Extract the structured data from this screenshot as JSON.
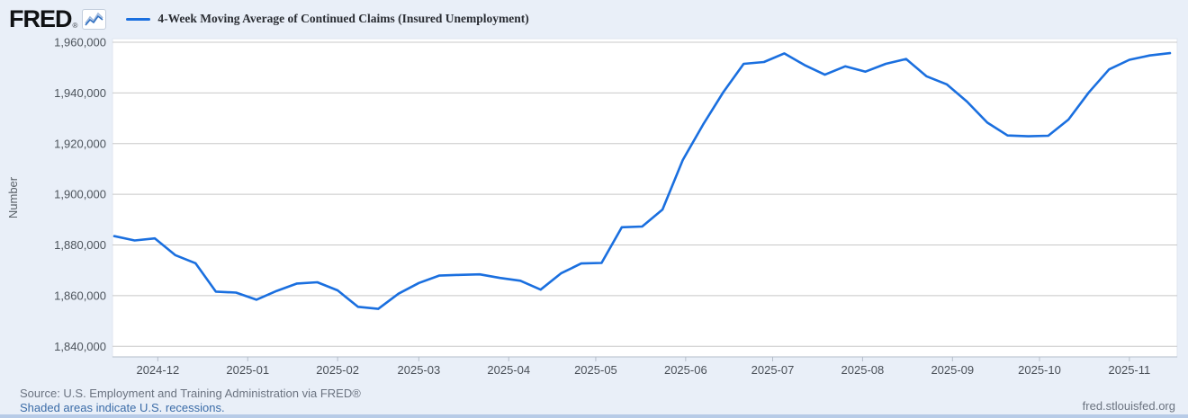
{
  "header": {
    "logo_text": "FRED",
    "logo_registered": "®",
    "legend_swatch_color": "#1a6fdf"
  },
  "chart_data": {
    "type": "line",
    "title": "4-Week Moving Average of Continued Claims (Insured Unemployment)",
    "xlabel": "",
    "ylabel": "Number",
    "ylim": [
      1840000,
      1960000
    ],
    "y_tick_step": 20000,
    "y_ticks": [
      1960000,
      1940000,
      1920000,
      1900000,
      1880000,
      1860000,
      1840000
    ],
    "x_ticks": [
      {
        "label": "2024-12",
        "date": "2024-12-01"
      },
      {
        "label": "2025-01",
        "date": "2025-01-01"
      },
      {
        "label": "2025-02",
        "date": "2025-02-01"
      },
      {
        "label": "2025-03",
        "date": "2025-03-01"
      },
      {
        "label": "2025-04",
        "date": "2025-04-01"
      },
      {
        "label": "2025-05",
        "date": "2025-05-01"
      },
      {
        "label": "2025-06",
        "date": "2025-06-01"
      },
      {
        "label": "2025-07",
        "date": "2025-07-01"
      },
      {
        "label": "2025-08",
        "date": "2025-08-01"
      },
      {
        "label": "2025-09",
        "date": "2025-09-01"
      },
      {
        "label": "2025-10",
        "date": "2025-10-01"
      },
      {
        "label": "2025-11",
        "date": "2025-11-01"
      }
    ],
    "grid": true,
    "legend_position": "top-left",
    "series": [
      {
        "name": "4-Week Moving Average of Continued Claims (Insured Unemployment)",
        "color": "#1a6fdf",
        "x": [
          "2024-11-16",
          "2024-11-23",
          "2024-11-30",
          "2024-12-07",
          "2024-12-14",
          "2024-12-21",
          "2024-12-28",
          "2025-01-04",
          "2025-01-11",
          "2025-01-18",
          "2025-01-25",
          "2025-02-01",
          "2025-02-08",
          "2025-02-15",
          "2025-02-22",
          "2025-03-01",
          "2025-03-08",
          "2025-03-15",
          "2025-03-22",
          "2025-03-29",
          "2025-04-05",
          "2025-04-12",
          "2025-04-19",
          "2025-04-26",
          "2025-05-03",
          "2025-05-10",
          "2025-05-17",
          "2025-05-24",
          "2025-05-31",
          "2025-06-07",
          "2025-06-14",
          "2025-06-21",
          "2025-06-28",
          "2025-07-05",
          "2025-07-12",
          "2025-07-19",
          "2025-07-26",
          "2025-08-02",
          "2025-08-09",
          "2025-08-16",
          "2025-08-23",
          "2025-08-30",
          "2025-09-06",
          "2025-09-13",
          "2025-09-20",
          "2025-09-27",
          "2025-10-04",
          "2025-10-11",
          "2025-10-18",
          "2025-10-25",
          "2025-11-01",
          "2025-11-08",
          "2025-11-15"
        ],
        "values": [
          1883500,
          1881800,
          1882600,
          1876000,
          1872800,
          1861600,
          1861200,
          1858400,
          1861900,
          1864800,
          1865300,
          1862100,
          1855600,
          1854800,
          1860800,
          1865000,
          1867900,
          1868200,
          1868400,
          1867000,
          1865900,
          1862400,
          1868800,
          1872700,
          1872900,
          1887000,
          1887300,
          1894000,
          1913500,
          1927500,
          1940300,
          1951500,
          1952200,
          1955600,
          1951000,
          1947200,
          1950500,
          1948400,
          1951500,
          1953400,
          1946600,
          1943400,
          1936600,
          1928300,
          1923200,
          1922900,
          1923100,
          1929500,
          1940200,
          1949300,
          1953100,
          1954800,
          1955700
        ]
      }
    ]
  },
  "footer": {
    "source_line": "Source: U.S. Employment and Training Administration via FRED®",
    "recessions_note": "Shaded areas indicate U.S. recessions.",
    "site_link": "fred.stlouisfed.org"
  },
  "colors": {
    "page_bg": "#e9eff8",
    "plot_bg": "#ffffff",
    "plot_border": "#dfe6ef",
    "gridline": "#c8c8c8",
    "axis_line": "#b3bcc8",
    "line": "#1a6fdf",
    "bottom_strip": "#b7cbe7"
  }
}
